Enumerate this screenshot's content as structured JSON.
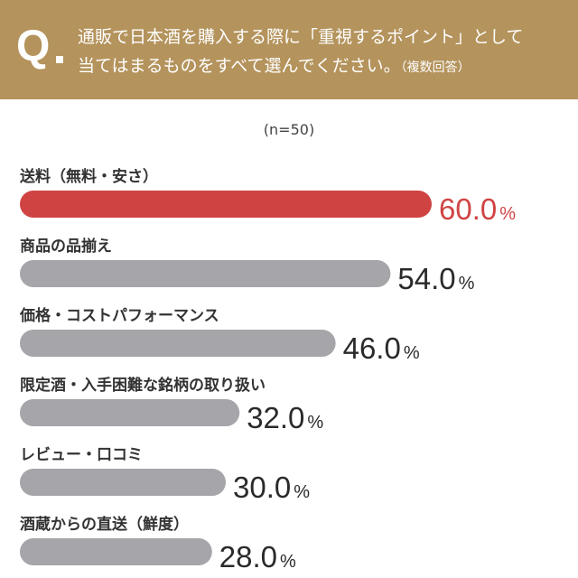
{
  "question": {
    "mark": "Q",
    "line1": "通販で日本酒を購入する際に「重視するポイント」として",
    "line2": "当てはまるものをすべて選んでください。",
    "note": "（複数回答）"
  },
  "sample_label": "(n=50)",
  "colors": {
    "header": "#b4935c",
    "highlight": "#d04343",
    "bar": "#a5a5aa",
    "text": "#2a2a2a"
  },
  "chart_data": {
    "type": "bar",
    "orientation": "horizontal",
    "unit": "%",
    "categories": [
      "送料（無料・安さ）",
      "商品の品揃え",
      "価格・コストパフォーマンス",
      "限定酒・入手困難な銘柄の取り扱い",
      "レビュー・口コミ",
      "酒蔵からの直送（鮮度）"
    ],
    "values": [
      60.0,
      54.0,
      46.0,
      32.0,
      30.0,
      28.0
    ],
    "value_labels": [
      "60.0",
      "54.0",
      "46.0",
      "32.0",
      "30.0",
      "28.0"
    ],
    "highlight_index": 0,
    "xlim": [
      0,
      100
    ],
    "grid": false
  }
}
